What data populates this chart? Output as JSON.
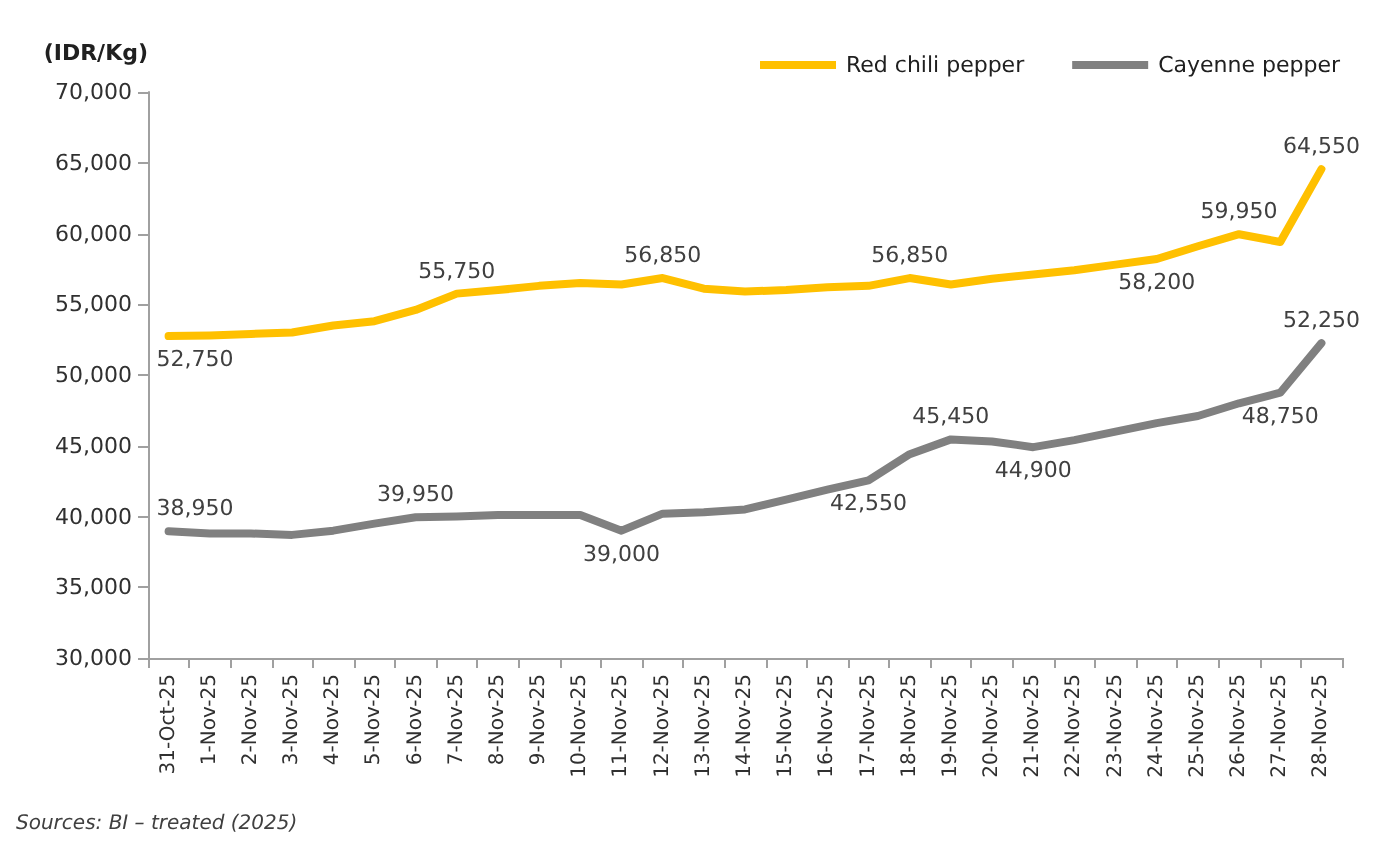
{
  "chart_data": {
    "type": "line",
    "ylabel": "(IDR/Kg)",
    "annotations": [
      "Sources: BI – treated (2025)"
    ],
    "categories": [
      "31-Oct-25",
      "1-Nov-25",
      "2-Nov-25",
      "3-Nov-25",
      "4-Nov-25",
      "5-Nov-25",
      "6-Nov-25",
      "7-Nov-25",
      "8-Nov-25",
      "9-Nov-25",
      "10-Nov-25",
      "11-Nov-25",
      "12-Nov-25",
      "13-Nov-25",
      "14-Nov-25",
      "15-Nov-25",
      "16-Nov-25",
      "17-Nov-25",
      "18-Nov-25",
      "19-Nov-25",
      "20-Nov-25",
      "21-Nov-25",
      "22-Nov-25",
      "23-Nov-25",
      "24-Nov-25",
      "25-Nov-25",
      "26-Nov-25",
      "27-Nov-25",
      "28-Nov-25"
    ],
    "series": [
      {
        "name": "Red chili pepper",
        "color": "#ffc000",
        "values": [
          52750,
          52800,
          52900,
          53000,
          53500,
          53800,
          54600,
          55750,
          56000,
          56300,
          56500,
          56400,
          56850,
          56100,
          55900,
          56000,
          56200,
          56300,
          56850,
          56400,
          56800,
          57100,
          57400,
          57800,
          58200,
          59100,
          59950,
          59400,
          64550
        ],
        "value_labels": [
          "52,750",
          null,
          null,
          null,
          null,
          null,
          null,
          "55,750",
          null,
          null,
          null,
          null,
          "56,850",
          null,
          null,
          null,
          null,
          null,
          "56,850",
          null,
          null,
          null,
          null,
          null,
          "58,200",
          null,
          "59,950",
          null,
          "64,550"
        ]
      },
      {
        "name": "Cayenne pepper",
        "color": "#808080",
        "values": [
          38950,
          38800,
          38800,
          38700,
          39000,
          39500,
          39950,
          40000,
          40100,
          40100,
          40100,
          39000,
          40200,
          40300,
          40500,
          41200,
          41900,
          42550,
          44400,
          45450,
          45300,
          44900,
          45400,
          46000,
          46600,
          47100,
          48000,
          48750,
          52250
        ],
        "value_labels": [
          "38,950",
          null,
          null,
          null,
          null,
          null,
          "39,950",
          null,
          null,
          null,
          null,
          "39,000",
          null,
          null,
          null,
          null,
          null,
          "42,550",
          null,
          "45,450",
          null,
          "44,900",
          null,
          null,
          null,
          null,
          null,
          "48,750",
          "52,250"
        ]
      }
    ],
    "ylim": [
      30000,
      70000
    ],
    "yticks": [
      {
        "value": 30000,
        "label": "30,000"
      },
      {
        "value": 35000,
        "label": "35,000"
      },
      {
        "value": 40000,
        "label": "40,000"
      },
      {
        "value": 45000,
        "label": "45,000"
      },
      {
        "value": 50000,
        "label": "50,000"
      },
      {
        "value": 55000,
        "label": "55,000"
      },
      {
        "value": 60000,
        "label": "60,000"
      },
      {
        "value": 65000,
        "label": "65,000"
      },
      {
        "value": 70000,
        "label": "70,000"
      }
    ],
    "grid": false,
    "legend": "top right",
    "marker": "none",
    "line_style": "solid"
  }
}
